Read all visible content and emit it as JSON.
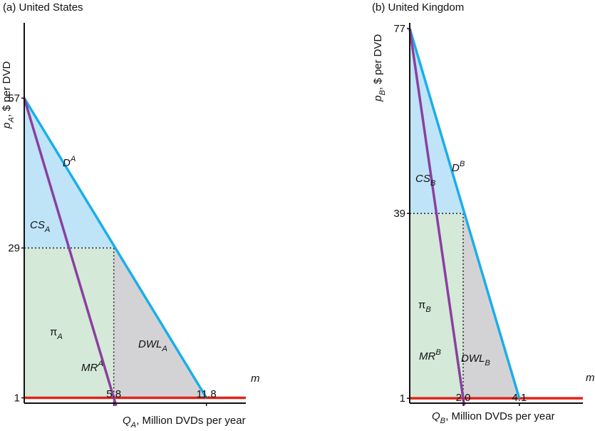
{
  "chart_data": [
    {
      "type": "area",
      "title": "(a) United States",
      "ylabel": {
        "base": "p",
        "sub": "A",
        "rest": ", $ per DVD"
      },
      "xlabel": {
        "base": "Q",
        "sub": "A",
        "rest": ", Million DVDs per year"
      },
      "xlim": [
        0,
        13.2
      ],
      "ylim": [
        0,
        70
      ],
      "yticks": [
        1,
        29,
        57
      ],
      "xticks": [
        5.8,
        11.8
      ],
      "demand": {
        "label": "D",
        "sup": "A",
        "x": [
          0,
          11.8
        ],
        "y": [
          57,
          1
        ]
      },
      "mr": {
        "label": "MR",
        "sup": "A",
        "x": [
          0,
          5.8
        ],
        "y": [
          57,
          1
        ]
      },
      "mc": {
        "label": "m",
        "y": 1
      },
      "monopoly": {
        "q": 5.8,
        "p": 29
      },
      "areas": {
        "cs": {
          "label": "CS",
          "sub": "A"
        },
        "profit": {
          "label": "π",
          "sub": "A"
        },
        "dwl": {
          "label": "DWL",
          "sub": "A"
        }
      }
    },
    {
      "type": "area",
      "title": "(b) United Kingdom",
      "ylabel": {
        "base": "p",
        "sub": "B",
        "rest": ", $ per DVD"
      },
      "xlabel": {
        "base": "Q",
        "sub": "B",
        "rest": ", Million DVDs per year"
      },
      "xlim": [
        0,
        6.4
      ],
      "ylim": [
        0,
        77
      ],
      "yticks": [
        1,
        39,
        77
      ],
      "xticks": [
        2.0,
        4.1
      ],
      "demand": {
        "label": "D",
        "sup": "B",
        "x": [
          0,
          4.1
        ],
        "y": [
          77,
          1
        ]
      },
      "mr": {
        "label": "MR",
        "sup": "B",
        "x": [
          0,
          2.0
        ],
        "y": [
          77,
          1
        ]
      },
      "mc": {
        "label": "m",
        "y": 1
      },
      "monopoly": {
        "q": 2.0,
        "p": 39
      },
      "areas": {
        "cs": {
          "label": "CS",
          "sub": "B"
        },
        "profit": {
          "label": "π",
          "sub": "B"
        },
        "dwl": {
          "label": "DWL",
          "sub": "B"
        }
      }
    }
  ],
  "colors": {
    "demand": "#1aaee8",
    "mr": "#8b3fa0",
    "mc": "#e0251b",
    "cs": "#bfe4f8",
    "profit": "#d4e9d7",
    "dwl": "#d3d3d6",
    "axis": "#111111"
  }
}
